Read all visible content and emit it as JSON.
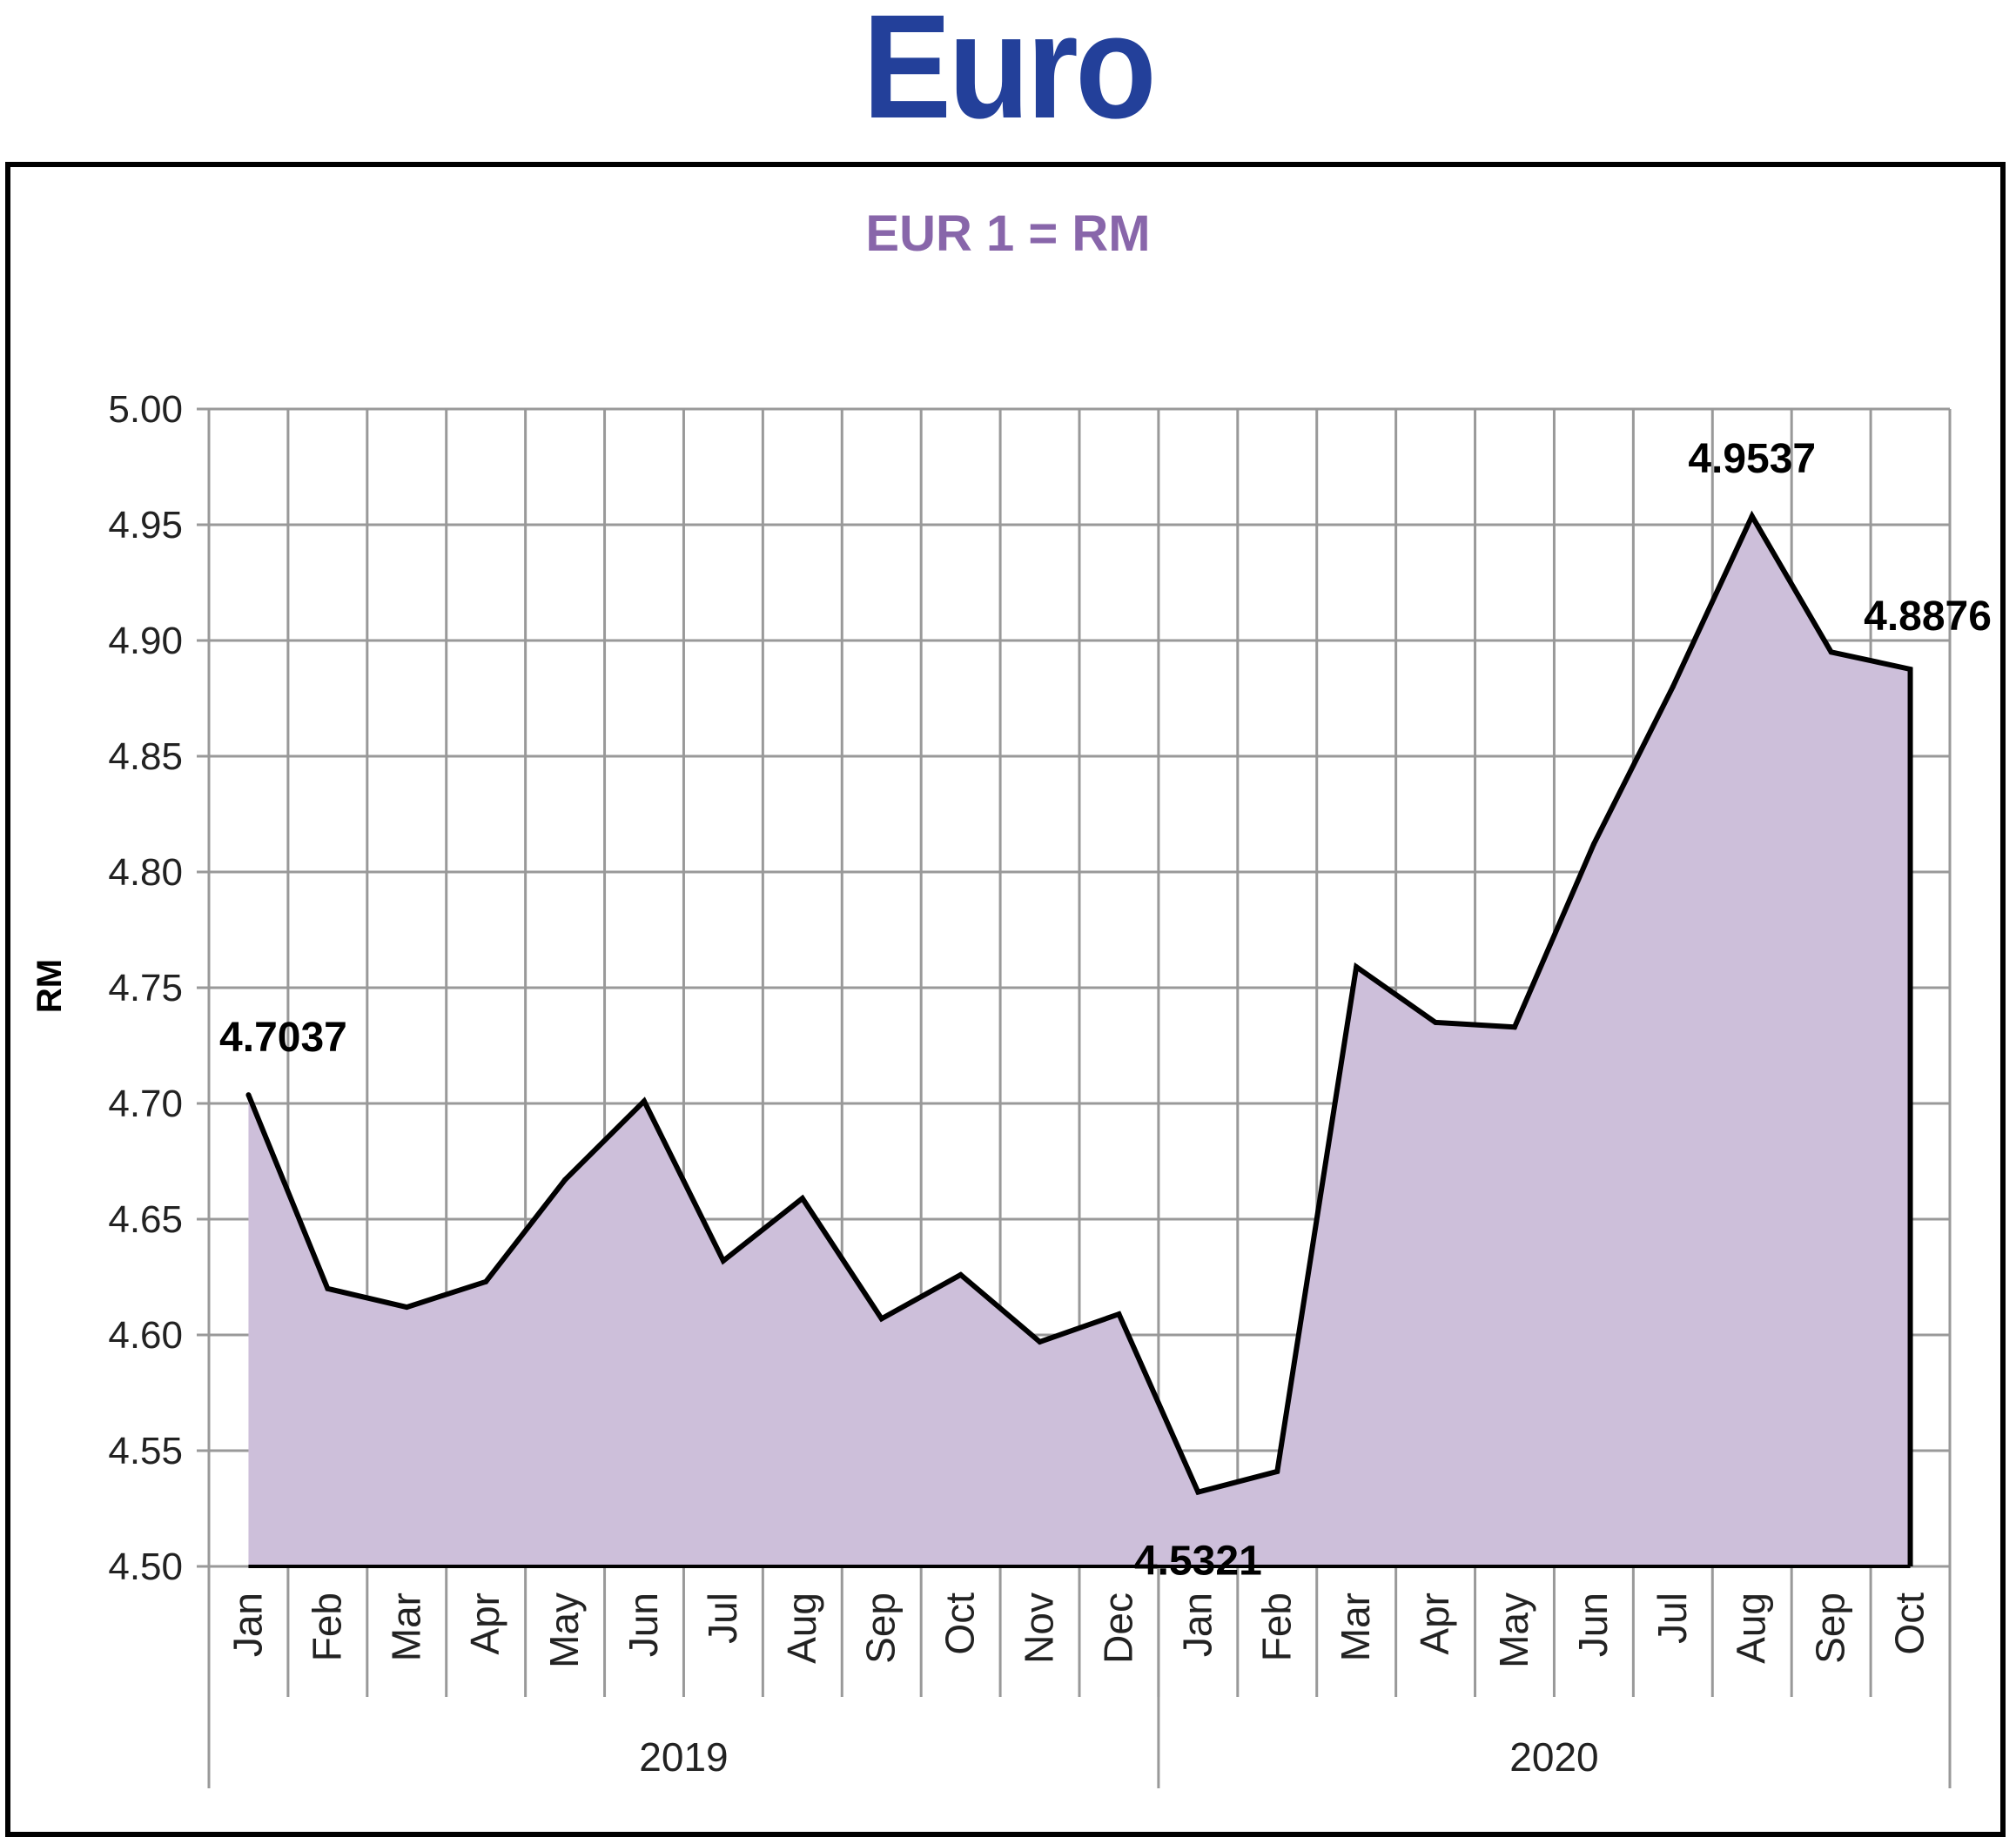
{
  "page": {
    "title": "Euro"
  },
  "colors": {
    "title": "#23409a",
    "subtitle": "#8866aa",
    "area_fill": "#cdbfda",
    "line": "#000000",
    "grid": "#999999"
  },
  "chart_data": {
    "type": "area",
    "title": "EUR 1 = RM",
    "ylabel": "RM",
    "xlabel": "",
    "ylim": [
      4.5,
      5.0
    ],
    "yticks": [
      "4.50",
      "4.55",
      "4.60",
      "4.65",
      "4.70",
      "4.75",
      "4.80",
      "4.85",
      "4.90",
      "4.95",
      "5.00"
    ],
    "grid": true,
    "legend": "none",
    "categories": [
      "Jan",
      "Feb",
      "Mar",
      "Apr",
      "May",
      "Jun",
      "Jul",
      "Aug",
      "Sep",
      "Oct",
      "Nov",
      "Dec",
      "Jan",
      "Feb",
      "Mar",
      "Apr",
      "May",
      "Jun",
      "Jul",
      "Aug",
      "Sep",
      "Oct"
    ],
    "groups": [
      {
        "label": "2019",
        "count": 12
      },
      {
        "label": "2020",
        "count": 10
      }
    ],
    "values": [
      4.7037,
      4.62,
      4.612,
      4.623,
      4.667,
      4.701,
      4.632,
      4.659,
      4.607,
      4.626,
      4.597,
      4.609,
      4.5321,
      4.541,
      4.759,
      4.735,
      4.733,
      4.812,
      4.88,
      4.9537,
      4.895,
      4.8876
    ],
    "annotations": [
      {
        "index": 0,
        "text": "4.7037"
      },
      {
        "index": 12,
        "text": "4.5321"
      },
      {
        "index": 19,
        "text": "4.9537"
      },
      {
        "index": 21,
        "text": "4.8876"
      }
    ]
  }
}
